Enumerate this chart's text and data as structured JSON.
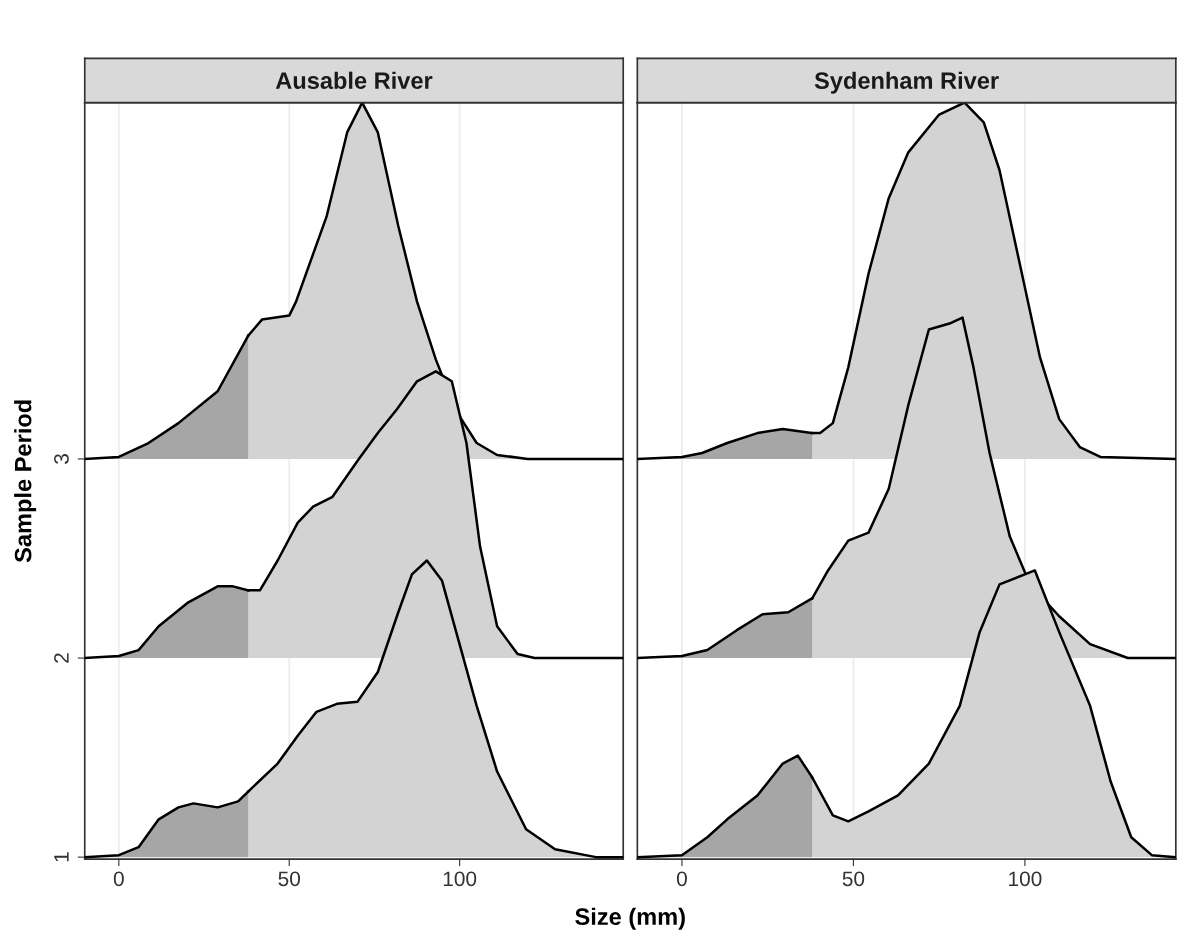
{
  "chart_data": [
    {
      "type": "area",
      "title": "Ausable River",
      "xlabel": "Size (mm)",
      "ylabel": "Sample Period",
      "xlim": [
        -10,
        148
      ],
      "ylim": [
        0.99,
        4.79
      ],
      "xticks": [
        0,
        50,
        100
      ],
      "yticks": [
        1,
        2,
        3
      ],
      "grid": "x",
      "series": [
        {
          "color": "#a6a6a6",
          "x": [
            -10,
            0,
            5.8,
            11.7,
            17.5,
            21.9,
            29,
            35,
            38
          ],
          "values": [
            1,
            1.01,
            1.05,
            1.19,
            1.25,
            1.27,
            1.25,
            1.28,
            1.33
          ]
        },
        {
          "color": "#d3d3d3",
          "x": [
            38,
            46.6,
            52.5,
            58,
            64,
            70,
            76,
            82,
            86,
            90.4,
            94.8,
            99,
            105,
            111,
            119.5,
            128,
            140,
            148
          ],
          "values": [
            1.33,
            1.47,
            1.61,
            1.73,
            1.77,
            1.78,
            1.93,
            2.23,
            2.42,
            2.49,
            2.39,
            2.13,
            1.76,
            1.43,
            1.14,
            1.04,
            1,
            1
          ]
        },
        {
          "color": "#a6a6a6",
          "x": [
            -10,
            0,
            5.8,
            11.7,
            20.4,
            29,
            33.5,
            38
          ],
          "values": [
            2,
            2.01,
            2.04,
            2.16,
            2.28,
            2.36,
            2.36,
            2.34
          ]
        },
        {
          "color": "#d3d3d3",
          "x": [
            38,
            41.4,
            46.6,
            52.5,
            57,
            62.7,
            70,
            76,
            81.6,
            87.5,
            93,
            97.7,
            102,
            106,
            111,
            117,
            122,
            148
          ],
          "values": [
            2.34,
            2.34,
            2.49,
            2.68,
            2.76,
            2.81,
            2.99,
            3.13,
            3.25,
            3.39,
            3.44,
            3.39,
            3.08,
            2.56,
            2.16,
            2.02,
            2,
            2
          ]
        },
        {
          "color": "#a6a6a6",
          "x": [
            -10,
            0,
            8.7,
            17.5,
            29,
            38
          ],
          "values": [
            3,
            3.01,
            3.08,
            3.18,
            3.34,
            3.62
          ]
        },
        {
          "color": "#d3d3d3",
          "x": [
            38,
            42,
            50,
            52,
            61,
            67,
            71.4,
            76,
            82,
            87.5,
            93,
            99,
            105,
            111,
            120,
            148
          ],
          "values": [
            3.62,
            3.7,
            3.72,
            3.79,
            4.22,
            4.64,
            4.79,
            4.64,
            4.17,
            3.79,
            3.5,
            3.24,
            3.08,
            3.02,
            3,
            3
          ]
        }
      ]
    },
    {
      "type": "area",
      "title": "Sydenham River",
      "xlim": [
        -13,
        144
      ],
      "ylim": [
        0.99,
        4.79
      ],
      "xticks": [
        0,
        50,
        100
      ],
      "yticks": [
        1,
        2,
        3
      ],
      "grid": "x",
      "tick_labels": "x",
      "series": [
        {
          "color": "#a6a6a6",
          "x": [
            -13,
            0,
            7.4,
            13.2,
            22,
            29.4,
            33.8,
            38
          ],
          "values": [
            1,
            1.01,
            1.1,
            1.19,
            1.31,
            1.47,
            1.51,
            1.4
          ]
        },
        {
          "color": "#d3d3d3",
          "x": [
            38,
            44,
            48.5,
            54.4,
            63,
            72,
            81,
            86.8,
            92.6,
            102.9,
            110,
            119,
            125,
            131,
            137,
            144
          ],
          "values": [
            1.4,
            1.21,
            1.18,
            1.23,
            1.31,
            1.47,
            1.76,
            2.13,
            2.37,
            2.44,
            2.13,
            1.76,
            1.38,
            1.1,
            1.01,
            1
          ]
        },
        {
          "color": "#a6a6a6",
          "x": [
            -13,
            0,
            7.4,
            16,
            23.5,
            31,
            38
          ],
          "values": [
            2,
            2.01,
            2.04,
            2.14,
            2.22,
            2.23,
            2.3
          ]
        },
        {
          "color": "#d3d3d3",
          "x": [
            38,
            42.6,
            48.5,
            54.4,
            60.3,
            66,
            72,
            78,
            81.8,
            85,
            89.7,
            95.6,
            101.5,
            110,
            119,
            130,
            144
          ],
          "values": [
            2.3,
            2.44,
            2.59,
            2.63,
            2.85,
            3.27,
            3.65,
            3.68,
            3.71,
            3.46,
            3.03,
            2.61,
            2.37,
            2.21,
            2.07,
            2,
            2
          ]
        },
        {
          "color": "#a6a6a6",
          "x": [
            -13,
            0,
            5.9,
            13.2,
            22,
            29.4,
            38
          ],
          "values": [
            3,
            3.01,
            3.03,
            3.08,
            3.13,
            3.15,
            3.13
          ]
        },
        {
          "color": "#d3d3d3",
          "x": [
            38,
            40.3,
            44,
            48.5,
            54.4,
            60.3,
            66,
            75,
            82.4,
            88,
            92.6,
            98.5,
            104.4,
            110,
            116,
            122,
            144
          ],
          "values": [
            3.13,
            3.13,
            3.18,
            3.46,
            3.93,
            4.31,
            4.54,
            4.73,
            4.79,
            4.69,
            4.45,
            3.98,
            3.51,
            3.2,
            3.06,
            3.01,
            3
          ]
        }
      ]
    }
  ]
}
